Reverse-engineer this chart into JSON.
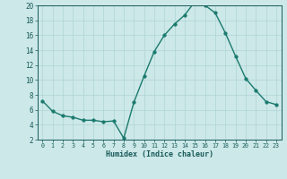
{
  "x": [
    0,
    1,
    2,
    3,
    4,
    5,
    6,
    7,
    8,
    9,
    10,
    11,
    12,
    13,
    14,
    15,
    16,
    17,
    18,
    19,
    20,
    21,
    22,
    23
  ],
  "y": [
    7.2,
    5.8,
    5.2,
    5.0,
    4.6,
    4.6,
    4.4,
    4.5,
    2.2,
    7.0,
    10.5,
    13.8,
    16.0,
    17.5,
    18.7,
    20.5,
    20.0,
    19.0,
    16.3,
    13.2,
    10.2,
    8.6,
    7.1,
    6.7
  ],
  "line_color": "#1a7a6e",
  "bg_color": "#cce8e8",
  "grid_color": "#b0d4d4",
  "xlabel": "Humidex (Indice chaleur)",
  "ylim": [
    2,
    20
  ],
  "xlim_min": -0.5,
  "xlim_max": 23.5,
  "yticks": [
    2,
    4,
    6,
    8,
    10,
    12,
    14,
    16,
    18,
    20
  ],
  "xticks": [
    0,
    1,
    2,
    3,
    4,
    5,
    6,
    7,
    8,
    9,
    10,
    11,
    12,
    13,
    14,
    15,
    16,
    17,
    18,
    19,
    20,
    21,
    22,
    23
  ],
  "marker": "o",
  "markersize": 2.5,
  "linewidth": 1.0,
  "tick_color": "#1a5a5a",
  "xlabel_fontsize": 6.0,
  "xtick_fontsize": 4.8,
  "ytick_fontsize": 5.5
}
